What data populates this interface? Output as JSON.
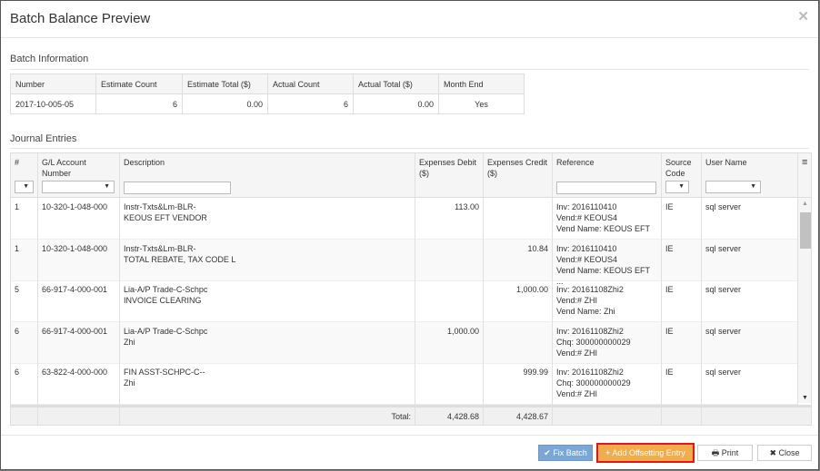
{
  "title": "Batch Balance Preview",
  "batch_info": {
    "heading": "Batch Information",
    "headers": [
      "Number",
      "Estimate Count",
      "Estimate Total ($)",
      "Actual Count",
      "Actual Total ($)",
      "Month End"
    ],
    "values": [
      "2017-10-005-05",
      "6",
      "0.00",
      "6",
      "0.00",
      "Yes"
    ]
  },
  "journal": {
    "heading": "Journal Entries",
    "headers": [
      "#",
      "G/L Account Number",
      "Description",
      "Expenses Debit ($)",
      "Expenses Credit ($)",
      "Reference",
      "Source Code",
      "User Name"
    ],
    "rows": [
      {
        "num": "1",
        "gl": "10-320-1-048-000",
        "desc1": "Instr-Txts&Lm-BLR-",
        "desc2": "KEOUS EFT VENDOR",
        "debit": "113.00",
        "credit": "",
        "ref1": "Inv: 2016110410",
        "ref2": "Vend:# KEOUS4",
        "ref3": "Vend Name: KEOUS EFT ...",
        "src": "IE",
        "user": "sql server"
      },
      {
        "num": "1",
        "gl": "10-320-1-048-000",
        "desc1": "Instr-Txts&Lm-BLR-",
        "desc2": "TOTAL REBATE, TAX CODE L",
        "debit": "",
        "credit": "10.84",
        "ref1": "Inv: 2016110410",
        "ref2": "Vend:# KEOUS4",
        "ref3": "Vend Name: KEOUS EFT ...",
        "src": "IE",
        "user": "sql server"
      },
      {
        "num": "5",
        "gl": "66-917-4-000-001",
        "desc1": "Lia-A/P Trade-C-Schpc",
        "desc2": "INVOICE CLEARING",
        "debit": "",
        "credit": "1,000.00",
        "ref1": "Inv: 20161108Zhi2",
        "ref2": "Vend:# ZHI",
        "ref3": "Vend Name: Zhi",
        "src": "IE",
        "user": "sql server"
      },
      {
        "num": "6",
        "gl": "66-917-4-000-001",
        "desc1": "Lia-A/P Trade-C-Schpc",
        "desc2": "Zhi",
        "debit": "1,000.00",
        "credit": "",
        "ref1": "Inv: 20161108Zhi2",
        "ref2": "Chq: 300000000029",
        "ref3": "Vend:# ZHI",
        "src": "IE",
        "user": "sql server"
      },
      {
        "num": "6",
        "gl": "63-822-4-000-000",
        "desc1": "FIN ASST-SCHPC-C--",
        "desc2": "Zhi",
        "debit": "",
        "credit": "999.99",
        "ref1": "Inv: 20161108Zhi2",
        "ref2": "Chq: 300000000029",
        "ref3": "Vend:# ZHI",
        "src": "IE",
        "user": "sql server"
      }
    ],
    "total_label": "Total:",
    "total_debit": "4,428.68",
    "total_credit": "4,428.67"
  },
  "buttons": {
    "fix": "✔ Fix Batch",
    "add": "+ Add Offsetting Entry",
    "print": "🖶 Print",
    "close": "✖ Close"
  },
  "colors": {
    "fix": "#7aa7d6",
    "add": "#f0ad4e",
    "highlight": "#e8141c"
  }
}
